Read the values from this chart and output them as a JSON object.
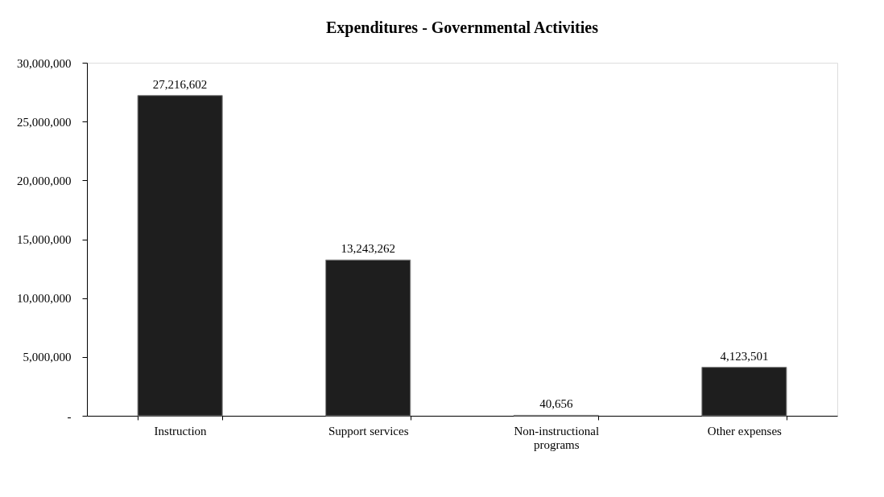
{
  "chart_data": {
    "type": "bar",
    "title": "Expenditures - Governmental Activities",
    "categories": [
      "Instruction",
      "Support services",
      "Non-instructional programs",
      "Other expenses"
    ],
    "values": [
      27216602,
      13243262,
      40656,
      4123501
    ],
    "value_labels": [
      "27,216,602",
      "13,243,262",
      "40,656",
      "4,123,501"
    ],
    "color": "#1e1e1e",
    "ylim": [
      0,
      30000000
    ],
    "yticks": [
      {
        "value": 0,
        "label": "-"
      },
      {
        "value": 5000000,
        "label": "5,000,000"
      },
      {
        "value": 10000000,
        "label": "10,000,000"
      },
      {
        "value": 15000000,
        "label": "15,000,000"
      },
      {
        "value": 20000000,
        "label": "20,000,000"
      },
      {
        "value": 25000000,
        "label": "25,000,000"
      },
      {
        "value": 30000000,
        "label": "30,000,000"
      }
    ],
    "grid": false
  }
}
